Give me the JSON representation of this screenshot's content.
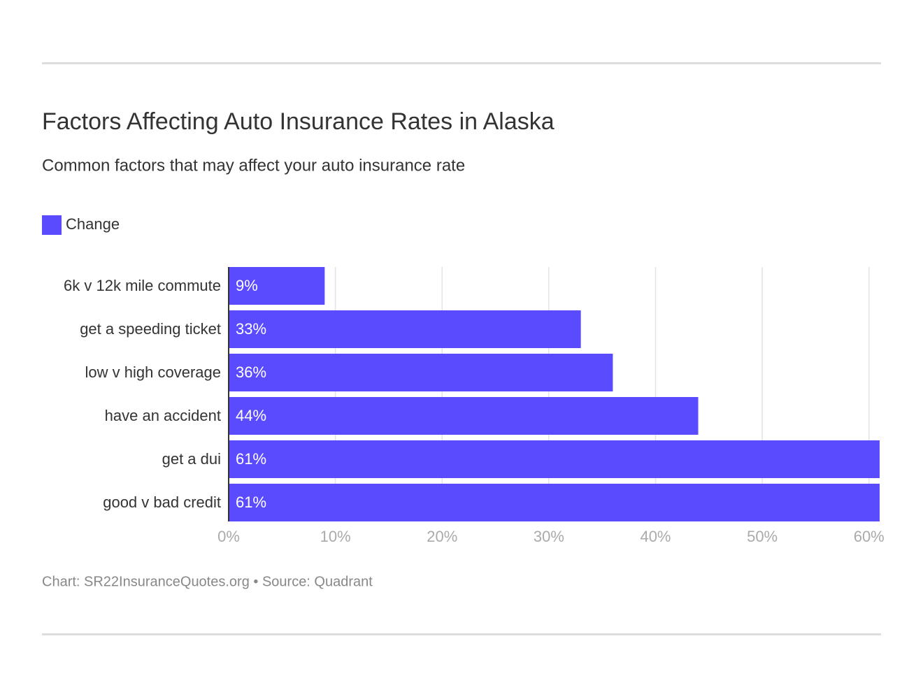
{
  "chart_data": {
    "type": "bar",
    "orientation": "horizontal",
    "title": "Factors Affecting Auto Insurance Rates in Alaska",
    "subtitle": "Common factors that may affect your auto insurance rate",
    "footer": "Chart: SR22InsuranceQuotes.org • Source: Quadrant",
    "categories": [
      "6k v 12k mile commute",
      "get a speeding ticket",
      "low v high coverage",
      "have an accident",
      "get a dui",
      "good v bad credit"
    ],
    "series": [
      {
        "name": "Change",
        "color": "#5b4bff",
        "values": [
          9,
          33,
          36,
          44,
          61,
          61
        ],
        "value_labels": [
          "9%",
          "33%",
          "36%",
          "44%",
          "61%",
          "61%"
        ]
      }
    ],
    "xlim": [
      0,
      61
    ],
    "xticks": [
      {
        "value": 0,
        "label": "0%"
      },
      {
        "value": 10,
        "label": "10%"
      },
      {
        "value": 20,
        "label": "20%"
      },
      {
        "value": 30,
        "label": "30%"
      },
      {
        "value": 40,
        "label": "40%"
      },
      {
        "value": 50,
        "label": "50%"
      },
      {
        "value": 60,
        "label": "60%"
      }
    ],
    "grid": true
  }
}
